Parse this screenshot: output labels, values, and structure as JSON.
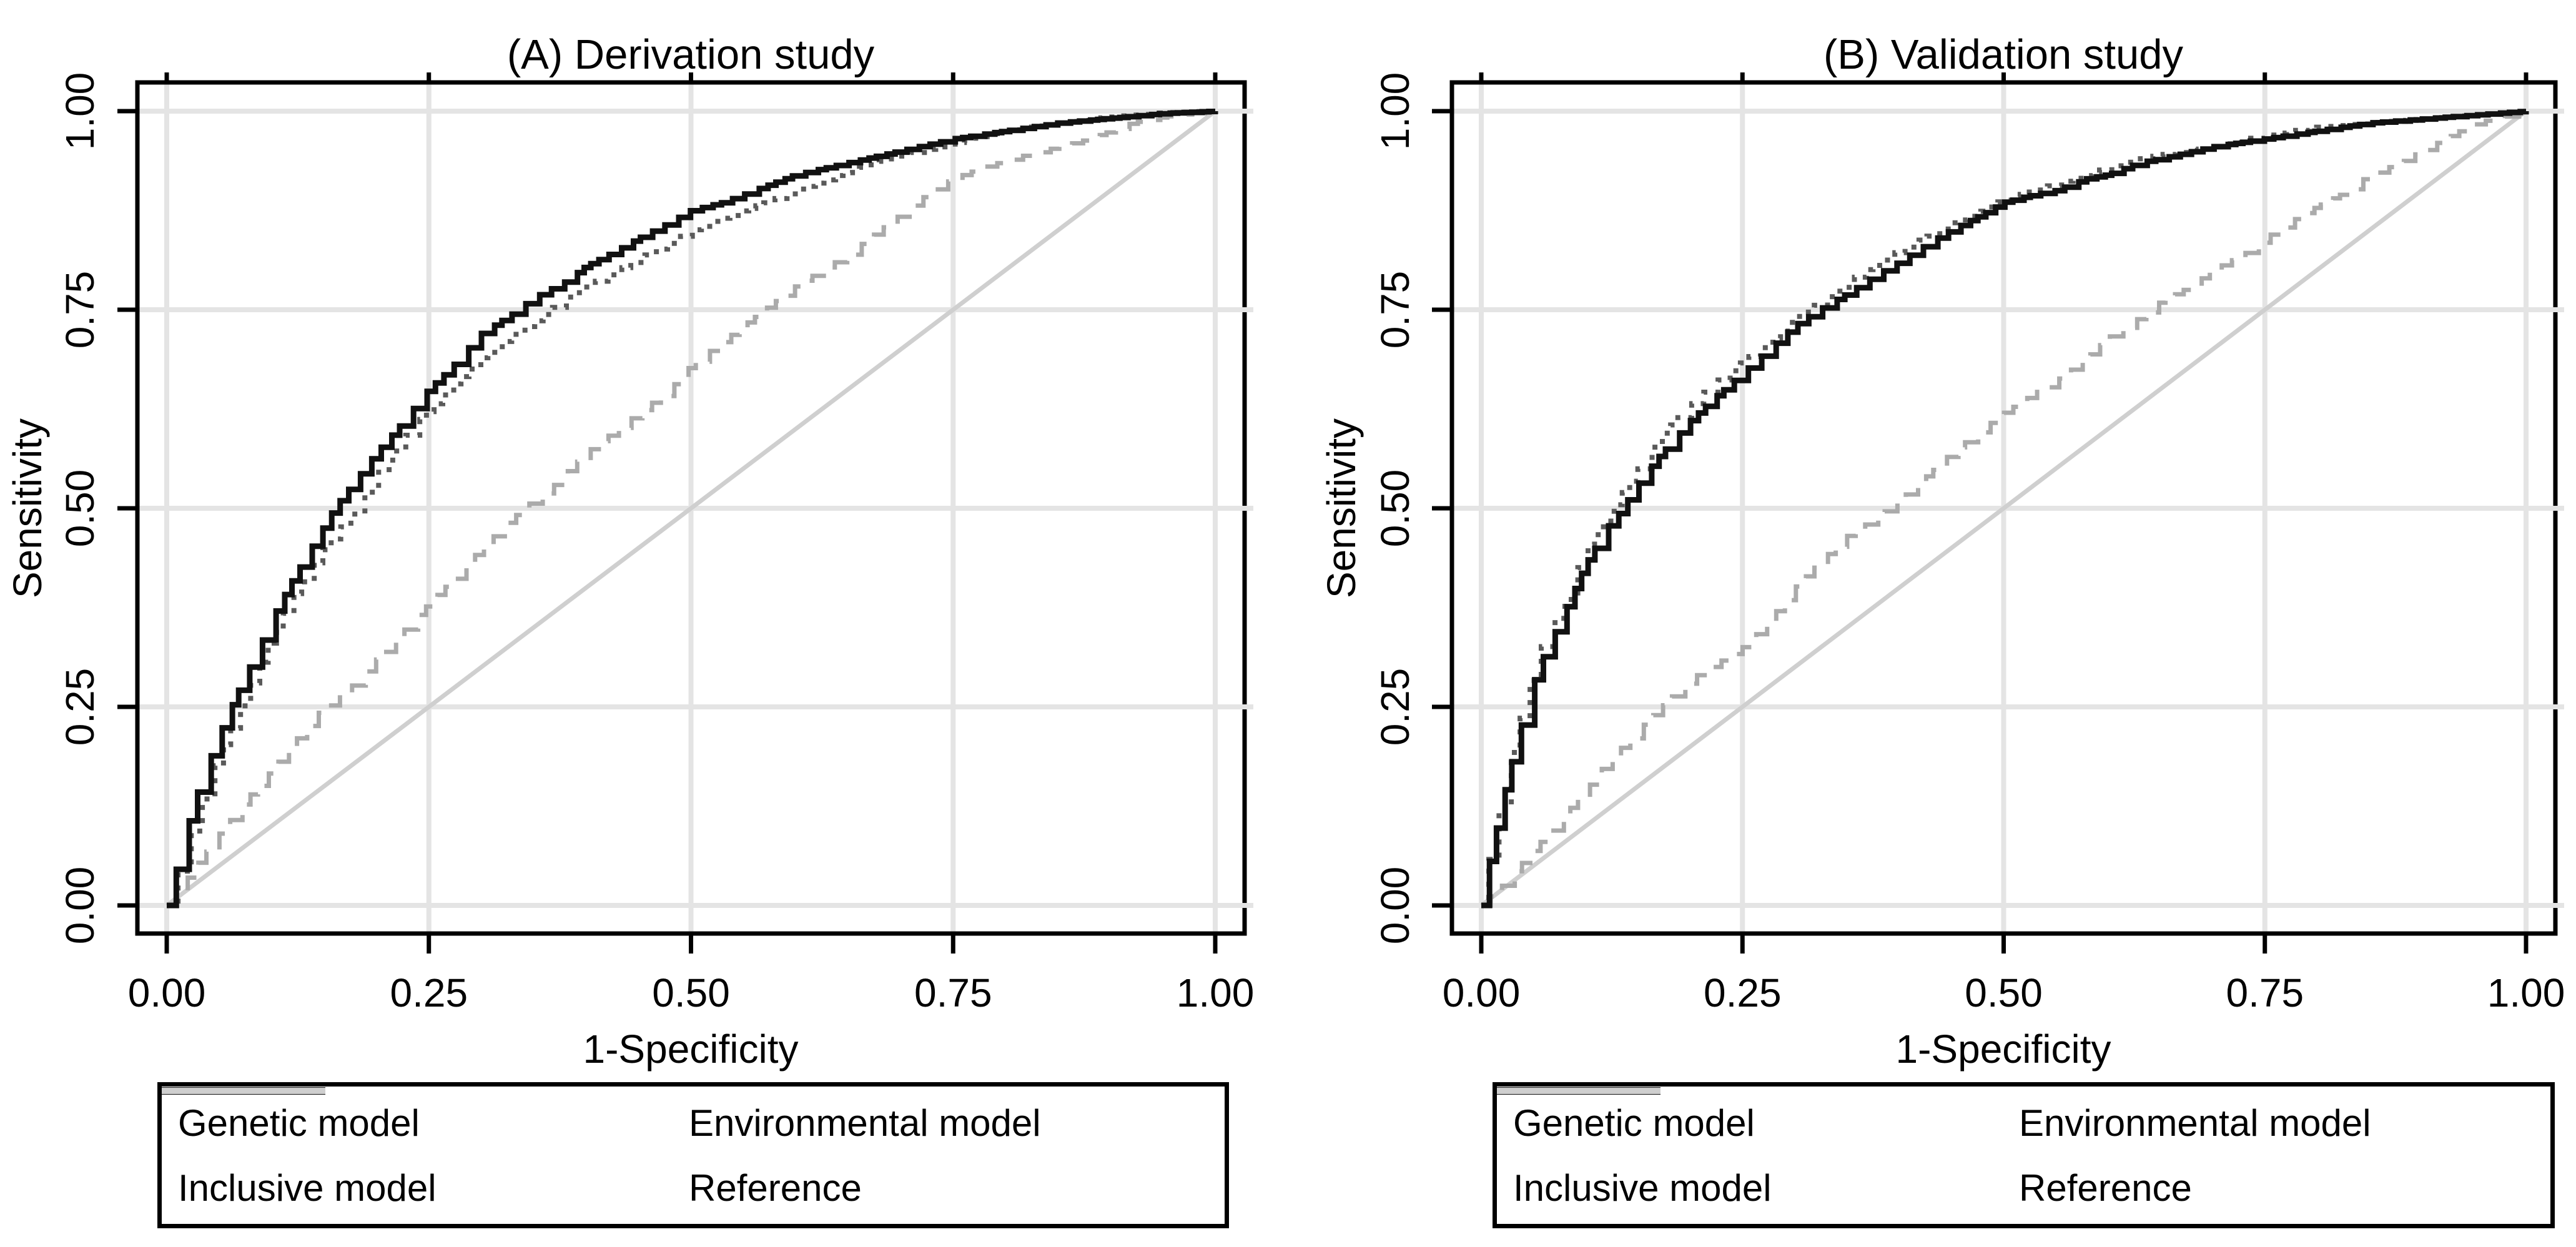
{
  "figure": {
    "background": "#ffffff",
    "colors": {
      "inclusive": "#111111",
      "environmental": "#5a5a5a",
      "genetic": "#ababab",
      "reference": "#cfcfcf",
      "gridline": "#e4e4e4",
      "axis": "#000000"
    },
    "panels": [
      {
        "title": "(A) Derivation study",
        "x_label": "1-Specificity",
        "y_label": "Sensitivity",
        "x_ticks": [
          "0.00",
          "0.25",
          "0.50",
          "0.75",
          "1.00"
        ],
        "y_ticks": [
          "0.00",
          "0.25",
          "0.50",
          "0.75",
          "1.00"
        ],
        "legend": [
          {
            "label": "Genetic model",
            "style": "dashed-gray"
          },
          {
            "label": "Environmental model",
            "style": "dotted-dark"
          },
          {
            "label": "Inclusive model",
            "style": "solid-black"
          },
          {
            "label": "Reference",
            "style": "solid-light"
          }
        ]
      },
      {
        "title": "(B) Validation study",
        "x_label": "1-Specificity",
        "y_label": "Sensitivity",
        "x_ticks": [
          "0.00",
          "0.25",
          "0.50",
          "0.75",
          "1.00"
        ],
        "y_ticks": [
          "0.00",
          "0.25",
          "0.50",
          "0.75",
          "1.00"
        ],
        "legend": [
          {
            "label": "Genetic model",
            "style": "dashed-gray"
          },
          {
            "label": "Environmental model",
            "style": "dotted-dark"
          },
          {
            "label": "Inclusive model",
            "style": "solid-black"
          },
          {
            "label": "Reference",
            "style": "solid-light"
          }
        ]
      }
    ]
  },
  "chart_data": [
    {
      "type": "line",
      "title": "(A) Derivation study",
      "xlabel": "1-Specificity",
      "ylabel": "Sensitivity",
      "xlim": [
        0,
        1
      ],
      "ylim": [
        0,
        1
      ],
      "x_tick_values": [
        0,
        0.25,
        0.5,
        0.75,
        1
      ],
      "y_tick_values": [
        0,
        0.25,
        0.5,
        0.75,
        1
      ],
      "grid": true,
      "legend_position": "bottom",
      "series": [
        {
          "name": "Genetic model",
          "style": "dashed",
          "color": "#ababab",
          "points": [
            [
              0,
              0
            ],
            [
              0.02,
              0.035
            ],
            [
              0.05,
              0.09
            ],
            [
              0.08,
              0.14
            ],
            [
              0.1,
              0.17
            ],
            [
              0.13,
              0.22
            ],
            [
              0.15,
              0.25
            ],
            [
              0.18,
              0.28
            ],
            [
              0.2,
              0.31
            ],
            [
              0.25,
              0.38
            ],
            [
              0.28,
              0.42
            ],
            [
              0.3,
              0.45
            ],
            [
              0.34,
              0.5
            ],
            [
              0.37,
              0.53
            ],
            [
              0.4,
              0.57
            ],
            [
              0.45,
              0.62
            ],
            [
              0.48,
              0.65
            ],
            [
              0.5,
              0.68
            ],
            [
              0.55,
              0.73
            ],
            [
              0.6,
              0.78
            ],
            [
              0.65,
              0.82
            ],
            [
              0.68,
              0.85
            ],
            [
              0.7,
              0.87
            ],
            [
              0.73,
              0.9
            ],
            [
              0.75,
              0.915
            ],
            [
              0.78,
              0.93
            ],
            [
              0.82,
              0.945
            ],
            [
              0.85,
              0.955
            ],
            [
              0.88,
              0.965
            ],
            [
              0.92,
              0.985
            ],
            [
              0.96,
              0.995
            ],
            [
              1,
              1
            ]
          ]
        },
        {
          "name": "Environmental model",
          "style": "dotted",
          "color": "#5a5a5a",
          "points": [
            [
              0,
              0
            ],
            [
              0.01,
              0.04
            ],
            [
              0.02,
              0.08
            ],
            [
              0.03,
              0.12
            ],
            [
              0.05,
              0.19
            ],
            [
              0.07,
              0.25
            ],
            [
              0.1,
              0.34
            ],
            [
              0.12,
              0.39
            ],
            [
              0.15,
              0.45
            ],
            [
              0.18,
              0.5
            ],
            [
              0.2,
              0.545
            ],
            [
              0.22,
              0.58
            ],
            [
              0.25,
              0.625
            ],
            [
              0.28,
              0.665
            ],
            [
              0.3,
              0.69
            ],
            [
              0.33,
              0.72
            ],
            [
              0.35,
              0.735
            ],
            [
              0.38,
              0.765
            ],
            [
              0.4,
              0.78
            ],
            [
              0.43,
              0.8
            ],
            [
              0.45,
              0.815
            ],
            [
              0.48,
              0.835
            ],
            [
              0.5,
              0.85
            ],
            [
              0.53,
              0.865
            ],
            [
              0.55,
              0.875
            ],
            [
              0.6,
              0.9
            ],
            [
              0.65,
              0.925
            ],
            [
              0.7,
              0.945
            ],
            [
              0.75,
              0.96
            ],
            [
              0.8,
              0.975
            ],
            [
              0.85,
              0.985
            ],
            [
              0.9,
              0.993
            ],
            [
              0.95,
              0.998
            ],
            [
              1,
              1
            ]
          ]
        },
        {
          "name": "Inclusive model",
          "style": "solid",
          "color": "#111111",
          "points": [
            [
              0,
              0
            ],
            [
              0.01,
              0.05
            ],
            [
              0.02,
              0.1
            ],
            [
              0.03,
              0.145
            ],
            [
              0.04,
              0.18
            ],
            [
              0.05,
              0.215
            ],
            [
              0.07,
              0.275
            ],
            [
              0.09,
              0.33
            ],
            [
              0.1,
              0.36
            ],
            [
              0.12,
              0.41
            ],
            [
              0.14,
              0.455
            ],
            [
              0.16,
              0.5
            ],
            [
              0.18,
              0.535
            ],
            [
              0.2,
              0.57
            ],
            [
              0.22,
              0.6
            ],
            [
              0.25,
              0.65
            ],
            [
              0.27,
              0.675
            ],
            [
              0.3,
              0.72
            ],
            [
              0.33,
              0.745
            ],
            [
              0.35,
              0.765
            ],
            [
              0.38,
              0.785
            ],
            [
              0.4,
              0.805
            ],
            [
              0.43,
              0.825
            ],
            [
              0.45,
              0.84
            ],
            [
              0.48,
              0.86
            ],
            [
              0.5,
              0.875
            ],
            [
              0.53,
              0.885
            ],
            [
              0.55,
              0.895
            ],
            [
              0.58,
              0.91
            ],
            [
              0.6,
              0.92
            ],
            [
              0.65,
              0.935
            ],
            [
              0.7,
              0.95
            ],
            [
              0.75,
              0.965
            ],
            [
              0.8,
              0.975
            ],
            [
              0.85,
              0.985
            ],
            [
              0.9,
              0.991
            ],
            [
              0.95,
              0.997
            ],
            [
              1,
              1
            ]
          ]
        },
        {
          "name": "Reference",
          "style": "reference",
          "color": "#cfcfcf",
          "points": [
            [
              0,
              0
            ],
            [
              1,
              1
            ]
          ]
        }
      ]
    },
    {
      "type": "line",
      "title": "(B) Validation study",
      "xlabel": "1-Specificity",
      "ylabel": "Sensitivity",
      "xlim": [
        0,
        1
      ],
      "ylim": [
        0,
        1
      ],
      "x_tick_values": [
        0,
        0.25,
        0.5,
        0.75,
        1
      ],
      "y_tick_values": [
        0,
        0.25,
        0.5,
        0.75,
        1
      ],
      "grid": true,
      "legend_position": "bottom",
      "series": [
        {
          "name": "Genetic model",
          "style": "dashed",
          "color": "#ababab",
          "points": [
            [
              0,
              0
            ],
            [
              0.02,
              0.025
            ],
            [
              0.04,
              0.055
            ],
            [
              0.06,
              0.085
            ],
            [
              0.08,
              0.115
            ],
            [
              0.1,
              0.145
            ],
            [
              0.12,
              0.18
            ],
            [
              0.15,
              0.22
            ],
            [
              0.18,
              0.26
            ],
            [
              0.2,
              0.285
            ],
            [
              0.22,
              0.3
            ],
            [
              0.25,
              0.325
            ],
            [
              0.27,
              0.35
            ],
            [
              0.3,
              0.4
            ],
            [
              0.33,
              0.44
            ],
            [
              0.35,
              0.465
            ],
            [
              0.38,
              0.49
            ],
            [
              0.4,
              0.51
            ],
            [
              0.43,
              0.545
            ],
            [
              0.45,
              0.57
            ],
            [
              0.48,
              0.6
            ],
            [
              0.5,
              0.62
            ],
            [
              0.53,
              0.645
            ],
            [
              0.55,
              0.66
            ],
            [
              0.58,
              0.69
            ],
            [
              0.6,
              0.715
            ],
            [
              0.63,
              0.74
            ],
            [
              0.65,
              0.76
            ],
            [
              0.68,
              0.78
            ],
            [
              0.7,
              0.8
            ],
            [
              0.73,
              0.82
            ],
            [
              0.75,
              0.84
            ],
            [
              0.78,
              0.865
            ],
            [
              0.8,
              0.88
            ],
            [
              0.83,
              0.9
            ],
            [
              0.85,
              0.92
            ],
            [
              0.88,
              0.935
            ],
            [
              0.9,
              0.95
            ],
            [
              0.93,
              0.97
            ],
            [
              0.95,
              0.985
            ],
            [
              0.97,
              0.99
            ],
            [
              1,
              1
            ]
          ]
        },
        {
          "name": "Environmental model",
          "style": "dotted",
          "color": "#5a5a5a",
          "points": [
            [
              0,
              0
            ],
            [
              0.01,
              0.08
            ],
            [
              0.02,
              0.14
            ],
            [
              0.03,
              0.2
            ],
            [
              0.04,
              0.25
            ],
            [
              0.05,
              0.3
            ],
            [
              0.06,
              0.335
            ],
            [
              0.08,
              0.385
            ],
            [
              0.1,
              0.45
            ],
            [
              0.12,
              0.49
            ],
            [
              0.13,
              0.51
            ],
            [
              0.15,
              0.55
            ],
            [
              0.17,
              0.59
            ],
            [
              0.2,
              0.63
            ],
            [
              0.22,
              0.655
            ],
            [
              0.25,
              0.685
            ],
            [
              0.28,
              0.715
            ],
            [
              0.3,
              0.74
            ],
            [
              0.33,
              0.765
            ],
            [
              0.35,
              0.785
            ],
            [
              0.38,
              0.81
            ],
            [
              0.4,
              0.825
            ],
            [
              0.43,
              0.845
            ],
            [
              0.45,
              0.86
            ],
            [
              0.48,
              0.875
            ],
            [
              0.5,
              0.89
            ],
            [
              0.53,
              0.9
            ],
            [
              0.55,
              0.91
            ],
            [
              0.58,
              0.92
            ],
            [
              0.6,
              0.93
            ],
            [
              0.63,
              0.94
            ],
            [
              0.65,
              0.945
            ],
            [
              0.7,
              0.955
            ],
            [
              0.75,
              0.97
            ],
            [
              0.8,
              0.98
            ],
            [
              0.85,
              0.985
            ],
            [
              0.9,
              0.99
            ],
            [
              0.95,
              0.995
            ],
            [
              1,
              1
            ]
          ]
        },
        {
          "name": "Inclusive model",
          "style": "solid",
          "color": "#111111",
          "points": [
            [
              0,
              0
            ],
            [
              0.01,
              0.07
            ],
            [
              0.02,
              0.13
            ],
            [
              0.03,
              0.185
            ],
            [
              0.04,
              0.235
            ],
            [
              0.05,
              0.28
            ],
            [
              0.06,
              0.315
            ],
            [
              0.08,
              0.37
            ],
            [
              0.1,
              0.43
            ],
            [
              0.12,
              0.475
            ],
            [
              0.13,
              0.49
            ],
            [
              0.15,
              0.53
            ],
            [
              0.17,
              0.565
            ],
            [
              0.2,
              0.61
            ],
            [
              0.22,
              0.635
            ],
            [
              0.25,
              0.67
            ],
            [
              0.28,
              0.705
            ],
            [
              0.3,
              0.73
            ],
            [
              0.33,
              0.755
            ],
            [
              0.35,
              0.77
            ],
            [
              0.38,
              0.795
            ],
            [
              0.4,
              0.81
            ],
            [
              0.43,
              0.835
            ],
            [
              0.45,
              0.85
            ],
            [
              0.48,
              0.87
            ],
            [
              0.5,
              0.885
            ],
            [
              0.53,
              0.895
            ],
            [
              0.55,
              0.9
            ],
            [
              0.58,
              0.915
            ],
            [
              0.6,
              0.92
            ],
            [
              0.63,
              0.935
            ],
            [
              0.65,
              0.94
            ],
            [
              0.7,
              0.955
            ],
            [
              0.75,
              0.965
            ],
            [
              0.8,
              0.975
            ],
            [
              0.85,
              0.985
            ],
            [
              0.9,
              0.99
            ],
            [
              0.95,
              0.995
            ],
            [
              1,
              1
            ]
          ]
        },
        {
          "name": "Reference",
          "style": "reference",
          "color": "#cfcfcf",
          "points": [
            [
              0,
              0
            ],
            [
              1,
              1
            ]
          ]
        }
      ]
    }
  ]
}
